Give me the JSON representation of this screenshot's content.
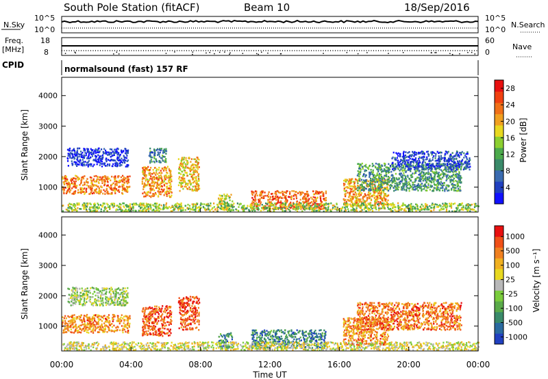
{
  "header": {
    "station": "South Pole Station (fitACF)",
    "beam": "Beam 10",
    "date": "18/Sep/2016"
  },
  "top_panels": {
    "nsky_label": "N.Sky",
    "nsky_ticks": [
      "10^5",
      "10^0"
    ],
    "nsearch_label": "N.Search",
    "nsearch_ticks": [
      "10^5",
      "10^0"
    ],
    "freq_label_line1": "Freq.",
    "freq_label_line2": "[MHz]",
    "freq_ticks": [
      "18",
      "8"
    ],
    "nave_label": "Nave",
    "nave_ticks": [
      "60",
      "0"
    ],
    "cpid_label": "CPID",
    "cpid_text": "normalsound (fast) 157 RF"
  },
  "chart_data": [
    {
      "type": "heatmap",
      "name": "power",
      "xlabel": "",
      "ylabel": "Slant Range [km]",
      "yticks": [
        "1000",
        "2000",
        "3000",
        "4000"
      ],
      "ylim": [
        180,
        4600
      ],
      "xlim_hours": [
        0,
        24
      ],
      "colorbar": {
        "label": "Power [dB]",
        "ticks": [
          "4",
          "8",
          "12",
          "16",
          "20",
          "24",
          "28"
        ],
        "colors": [
          "#1010ff",
          "#2040c0",
          "#3a6bb0",
          "#3a8a6a",
          "#4caa4c",
          "#8ccf30",
          "#e8d820",
          "#f0a020",
          "#f07018",
          "#f04010",
          "#e81010"
        ]
      },
      "features": [
        {
          "t0": 0.0,
          "t1": 3.9,
          "r0": 800,
          "r1": 1400,
          "level": 0.75
        },
        {
          "t0": 0.3,
          "t1": 3.8,
          "r0": 1700,
          "r1": 2300,
          "level": 0.1
        },
        {
          "t0": 4.6,
          "t1": 6.3,
          "r0": 700,
          "r1": 1700,
          "level": 0.7
        },
        {
          "t0": 5.0,
          "t1": 6.0,
          "r0": 1800,
          "r1": 2300,
          "level": 0.3
        },
        {
          "t0": 6.7,
          "t1": 7.9,
          "r0": 900,
          "r1": 2000,
          "level": 0.65
        },
        {
          "t0": 9.0,
          "t1": 9.8,
          "r0": 300,
          "r1": 800,
          "level": 0.55
        },
        {
          "t0": 10.9,
          "t1": 15.2,
          "r0": 300,
          "r1": 900,
          "level": 0.8
        },
        {
          "t0": 16.2,
          "t1": 18.8,
          "r0": 400,
          "r1": 1300,
          "level": 0.7
        },
        {
          "t0": 17.0,
          "t1": 23.0,
          "r0": 900,
          "r1": 1800,
          "level": 0.35
        },
        {
          "t0": 19.0,
          "t1": 23.5,
          "r0": 1600,
          "r1": 2200,
          "level": 0.15
        },
        {
          "t0": 0.0,
          "t1": 24.0,
          "r0": 200,
          "r1": 500,
          "level": 0.5
        }
      ]
    },
    {
      "type": "heatmap",
      "name": "velocity",
      "xlabel": "Time UT",
      "ylabel": "Slant Range [km]",
      "yticks": [
        "1000",
        "2000",
        "3000",
        "4000"
      ],
      "xticks": [
        "00:00",
        "04:00",
        "08:00",
        "12:00",
        "16:00",
        "20:00",
        "00:00"
      ],
      "ylim": [
        180,
        4600
      ],
      "xlim_hours": [
        0,
        24
      ],
      "colorbar": {
        "label": "Velocity [m s⁻¹]",
        "ticks": [
          "1000",
          "500",
          "100",
          "25",
          "-25",
          "-100",
          "-500",
          "-1000"
        ],
        "colors": [
          "#2040c0",
          "#2a6aa0",
          "#3a8a6a",
          "#5aaa4a",
          "#7acc3c",
          "#b8b8b8",
          "#e8d820",
          "#f0b020",
          "#f08020",
          "#f05018",
          "#e81010"
        ]
      },
      "features": [
        {
          "t0": 0.0,
          "t1": 3.9,
          "r0": 800,
          "r1": 1400,
          "level": 0.75
        },
        {
          "t0": 0.3,
          "t1": 3.8,
          "r0": 1700,
          "r1": 2300,
          "level": 0.45
        },
        {
          "t0": 4.6,
          "t1": 6.3,
          "r0": 700,
          "r1": 1700,
          "level": 0.85
        },
        {
          "t0": 6.7,
          "t1": 7.9,
          "r0": 900,
          "r1": 2000,
          "level": 0.85
        },
        {
          "t0": 9.0,
          "t1": 9.8,
          "r0": 300,
          "r1": 800,
          "level": 0.2
        },
        {
          "t0": 10.9,
          "t1": 15.2,
          "r0": 300,
          "r1": 900,
          "level": 0.2
        },
        {
          "t0": 16.2,
          "t1": 18.8,
          "r0": 400,
          "r1": 1300,
          "level": 0.75
        },
        {
          "t0": 17.0,
          "t1": 23.0,
          "r0": 900,
          "r1": 1800,
          "level": 0.8
        },
        {
          "t0": 0.0,
          "t1": 24.0,
          "r0": 200,
          "r1": 500,
          "level": 0.55
        }
      ]
    }
  ]
}
